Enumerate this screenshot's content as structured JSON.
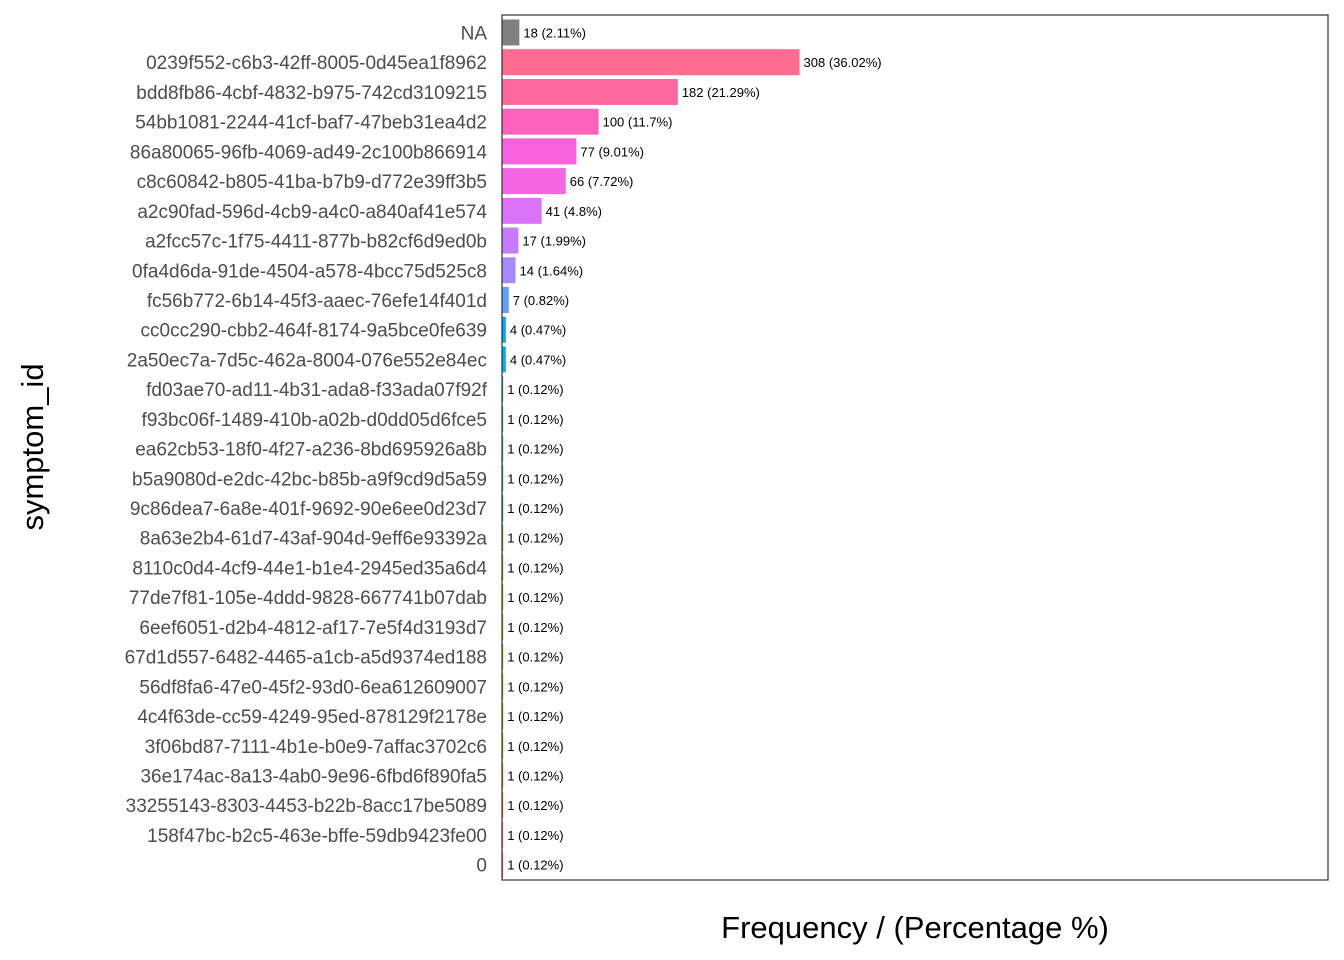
{
  "chart_data": {
    "type": "bar",
    "orientation": "horizontal",
    "xlabel": "Frequency / (Percentage %)",
    "ylabel": "symptom_id",
    "xlim": [
      0,
      855
    ],
    "grid": false,
    "legend": "none",
    "categories": [
      "NA",
      "0239f552-c6b3-42ff-8005-0d45ea1f8962",
      "bdd8fb86-4cbf-4832-b975-742cd3109215",
      "54bb1081-2244-41cf-baf7-47beb31ea4d2",
      "86a80065-96fb-4069-ad49-2c100b866914",
      "c8c60842-b805-41ba-b7b9-d772e39ff3b5",
      "a2c90fad-596d-4cb9-a4c0-a840af41e574",
      "a2fcc57c-1f75-4411-877b-b82cf6d9ed0b",
      "0fa4d6da-91de-4504-a578-4bcc75d525c8",
      "fc56b772-6b14-45f3-aaec-76efe14f401d",
      "cc0cc290-cbb2-464f-8174-9a5bce0fe639",
      "2a50ec7a-7d5c-462a-8004-076e552e84ec",
      "fd03ae70-ad11-4b31-ada8-f33ada07f92f",
      "f93bc06f-1489-410b-a02b-d0dd05d6fce5",
      "ea62cb53-18f0-4f27-a236-8bd695926a8b",
      "b5a9080d-e2dc-42bc-b85b-a9f9cd9d5a59",
      "9c86dea7-6a8e-401f-9692-90e6ee0d23d7",
      "8a63e2b4-61d7-43af-904d-9eff6e93392a",
      "8110c0d4-4cf9-44e1-b1e4-2945ed35a6d4",
      "77de7f81-105e-4ddd-9828-667741b07dab",
      "6eef6051-d2b4-4812-af17-7e5f4d3193d7",
      "67d1d557-6482-4465-a1cb-a5d9374ed188",
      "56df8fa6-47e0-45f2-93d0-6ea612609007",
      "4c4f63de-cc59-4249-95ed-878129f2178e",
      "3f06bd87-7111-4b1e-b0e9-7affac3702c6",
      "36e174ac-8a13-4ab0-9e96-6fbd6f890fa5",
      "33255143-8303-4453-b22b-8acc17be5089",
      "158f47bc-b2c5-463e-bffe-59db9423fe00",
      "0"
    ],
    "values": [
      18,
      308,
      182,
      100,
      77,
      66,
      41,
      17,
      14,
      7,
      4,
      4,
      1,
      1,
      1,
      1,
      1,
      1,
      1,
      1,
      1,
      1,
      1,
      1,
      1,
      1,
      1,
      1,
      1
    ],
    "data_labels": [
      "18 (2.11%)",
      "308 (36.02%)",
      "182 (21.29%)",
      "100 (11.7%)",
      "77 (9.01%)",
      "66 (7.72%)",
      "41 (4.8%)",
      "17 (1.99%)",
      "14 (1.64%)",
      "7 (0.82%)",
      "4 (0.47%)",
      "4 (0.47%)",
      "1 (0.12%)",
      "1 (0.12%)",
      "1 (0.12%)",
      "1 (0.12%)",
      "1 (0.12%)",
      "1 (0.12%)",
      "1 (0.12%)",
      "1 (0.12%)",
      "1 (0.12%)",
      "1 (0.12%)",
      "1 (0.12%)",
      "1 (0.12%)",
      "1 (0.12%)",
      "1 (0.12%)",
      "1 (0.12%)",
      "1 (0.12%)",
      "1 (0.12%)"
    ],
    "colors": [
      "#808080",
      "#FF6C91",
      "#FF689F",
      "#FF62BC",
      "#F962DD",
      "#F564E3",
      "#DC71FA",
      "#C77CFF",
      "#A58AFF",
      "#619CFF",
      "#00A9FF",
      "#00B4F0",
      "#00BCD8",
      "#00C0B8",
      "#00C08B",
      "#00BE67",
      "#00BA38",
      "#53B400",
      "#7CAE00",
      "#99A800",
      "#AEA200",
      "#BB9D00",
      "#C49A00",
      "#CD9600",
      "#D89000",
      "#E58700",
      "#F07F1E",
      "#F8766D",
      "#FF6A98"
    ]
  }
}
